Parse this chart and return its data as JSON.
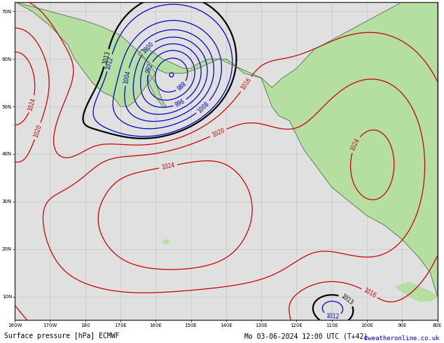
{
  "bottom_left_label": "Surface pressure [hPa] ECMWF",
  "bottom_right_label": "Mo 03-06-2024 12:00 UTC (T+42)",
  "credit": "©weatheronline.co.uk",
  "figsize": [
    6.34,
    4.9
  ],
  "dpi": 100,
  "bg_color": "#e0e0e0",
  "land_color": "#b4dfa0",
  "grid_color": "#aaaaaa",
  "ocean_color": "#e0e0e0",
  "isobar_blue_color": "#0000cc",
  "isobar_red_color": "#cc0000",
  "isobar_black_color": "#000000",
  "label_fontsize": 7,
  "credit_fontsize": 7,
  "credit_color": "#0000cc",
  "lon_min": -200,
  "lon_max": -80,
  "lat_min": 5,
  "lat_max": 72
}
